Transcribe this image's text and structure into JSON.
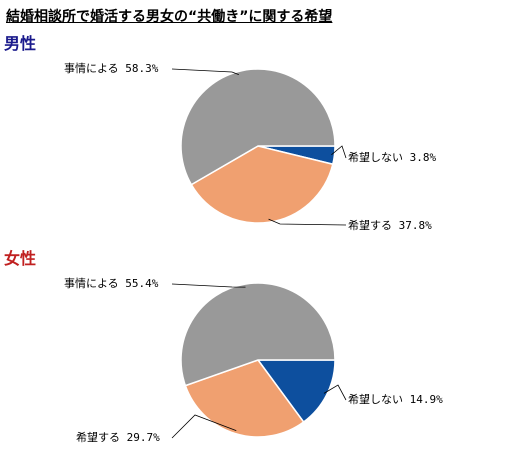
{
  "title": "結婚相談所で婚活する男女の“共働き”に関する希望",
  "colors": {
    "male_heading": "#1a1a8c",
    "female_heading": "#c02020"
  },
  "chart_data": [
    {
      "type": "pie",
      "title": "男性",
      "slices": [
        {
          "label": "希望しない",
          "value": 3.8,
          "value_text": "3.8%",
          "color": "#0d4f9e"
        },
        {
          "label": "希望する",
          "value": 37.8,
          "value_text": "37.8%",
          "color": "#f0a070"
        },
        {
          "label": "事情による",
          "value": 58.3,
          "value_text": "58.3%",
          "color": "#999999"
        }
      ]
    },
    {
      "type": "pie",
      "title": "女性",
      "slices": [
        {
          "label": "希望しない",
          "value": 14.9,
          "value_text": "14.9%",
          "color": "#0d4f9e"
        },
        {
          "label": "希望する",
          "value": 29.7,
          "value_text": "29.7%",
          "color": "#f0a070"
        },
        {
          "label": "事情による",
          "value": 55.4,
          "value_text": "55.4%",
          "color": "#999999"
        }
      ]
    }
  ]
}
